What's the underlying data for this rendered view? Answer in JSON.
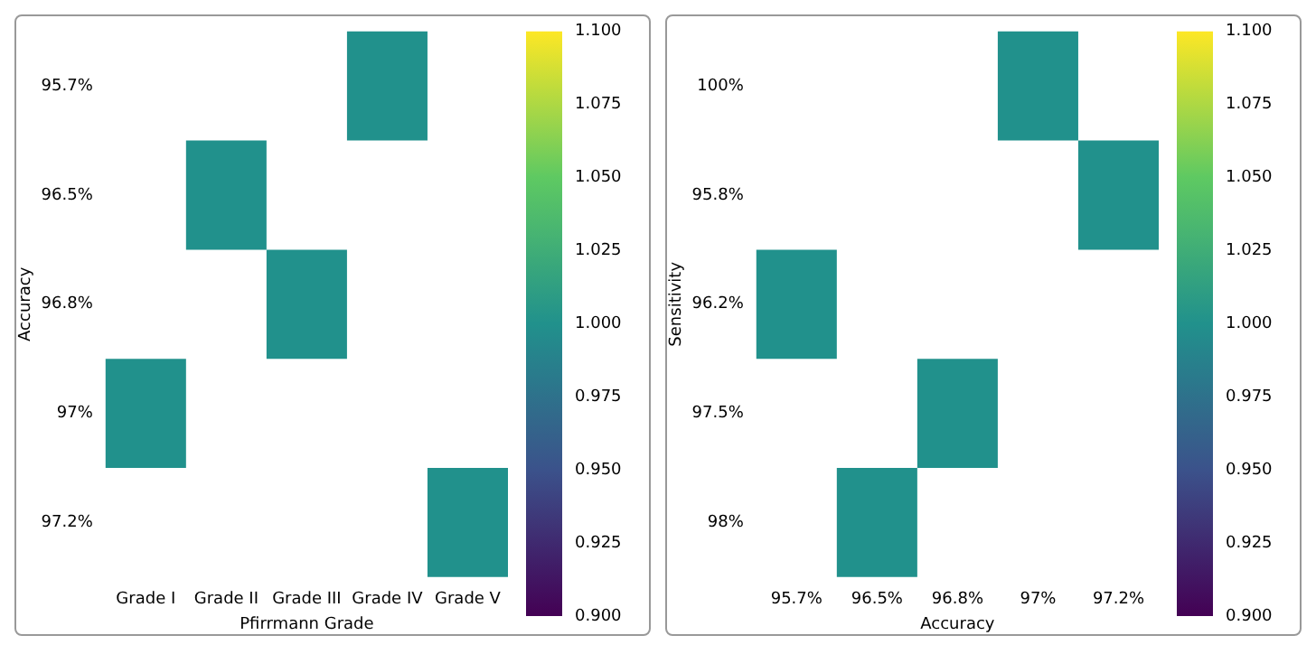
{
  "chart_data": [
    {
      "type": "heatmap",
      "xlabel": "Pfirrmann Grade",
      "ylabel": "Accuracy",
      "categories": [
        "Grade I",
        "Grade II",
        "Grade III",
        "Grade IV",
        "Grade V"
      ],
      "y_categories": [
        "95.7%",
        "96.5%",
        "96.8%",
        "97%",
        "97.2%"
      ],
      "cells": [
        [
          null,
          null,
          null,
          1,
          null
        ],
        [
          null,
          1,
          null,
          null,
          null
        ],
        [
          null,
          null,
          1,
          null,
          null
        ],
        [
          1,
          null,
          null,
          null,
          null
        ],
        [
          null,
          null,
          null,
          null,
          1
        ]
      ],
      "clim": [
        0.9,
        1.1
      ],
      "cticks": [
        {
          "value": 0.9,
          "label": "0.900"
        },
        {
          "value": 0.925,
          "label": "0.925"
        },
        {
          "value": 0.95,
          "label": "0.950"
        },
        {
          "value": 0.975,
          "label": "0.975"
        },
        {
          "value": 1.0,
          "label": "1.000"
        },
        {
          "value": 1.025,
          "label": "1.025"
        },
        {
          "value": 1.05,
          "label": "1.050"
        },
        {
          "value": 1.075,
          "label": "1.075"
        },
        {
          "value": 1.1,
          "label": "1.100"
        }
      ]
    },
    {
      "type": "heatmap",
      "xlabel": "Accuracy",
      "ylabel": "Sensitivity",
      "categories": [
        "95.7%",
        "96.5%",
        "96.8%",
        "97%",
        "97.2%"
      ],
      "y_categories": [
        "100%",
        "95.8%",
        "96.2%",
        "97.5%",
        "98%"
      ],
      "cells": [
        [
          null,
          null,
          null,
          1,
          null
        ],
        [
          null,
          null,
          null,
          null,
          1
        ],
        [
          1,
          null,
          null,
          null,
          null
        ],
        [
          null,
          null,
          1,
          null,
          null
        ],
        [
          null,
          1,
          null,
          null,
          null
        ]
      ],
      "clim": [
        0.9,
        1.1
      ],
      "cticks": [
        {
          "value": 0.9,
          "label": "0.900"
        },
        {
          "value": 0.925,
          "label": "0.925"
        },
        {
          "value": 0.95,
          "label": "0.950"
        },
        {
          "value": 0.975,
          "label": "0.975"
        },
        {
          "value": 1.0,
          "label": "1.000"
        },
        {
          "value": 1.025,
          "label": "1.025"
        },
        {
          "value": 1.05,
          "label": "1.050"
        },
        {
          "value": 1.075,
          "label": "1.075"
        },
        {
          "value": 1.1,
          "label": "1.100"
        }
      ]
    }
  ]
}
